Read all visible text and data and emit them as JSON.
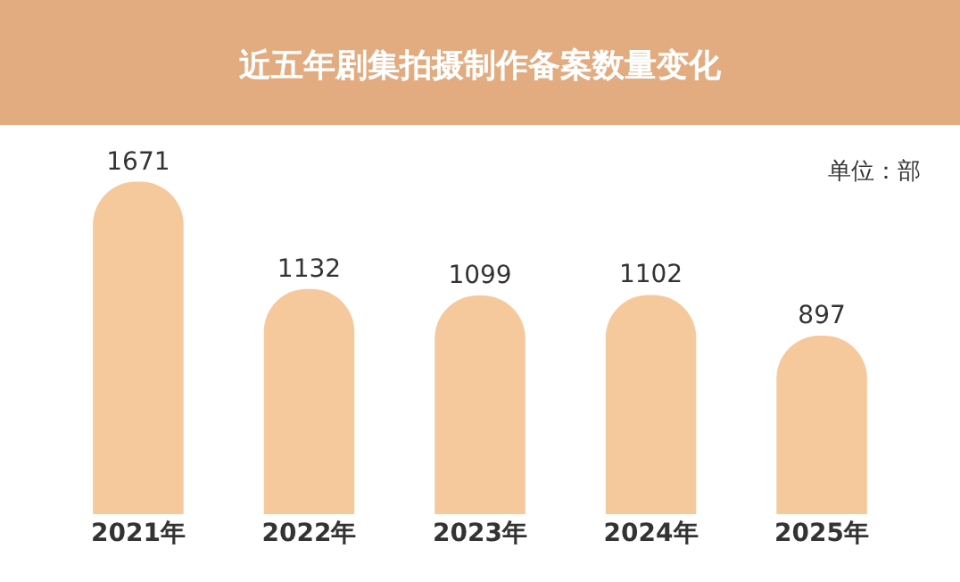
{
  "chart_data": {
    "type": "bar",
    "title": "近五年剧集拍摄制作备案数量变化",
    "categories": [
      "2021年",
      "2022年",
      "2023年",
      "2024年",
      "2025年"
    ],
    "values": [
      1671,
      1132,
      1099,
      1102,
      897
    ],
    "color": "#f6c99c",
    "data_labels": true,
    "annotations": [
      "单位：部"
    ],
    "grid": false,
    "legend": false
  }
}
